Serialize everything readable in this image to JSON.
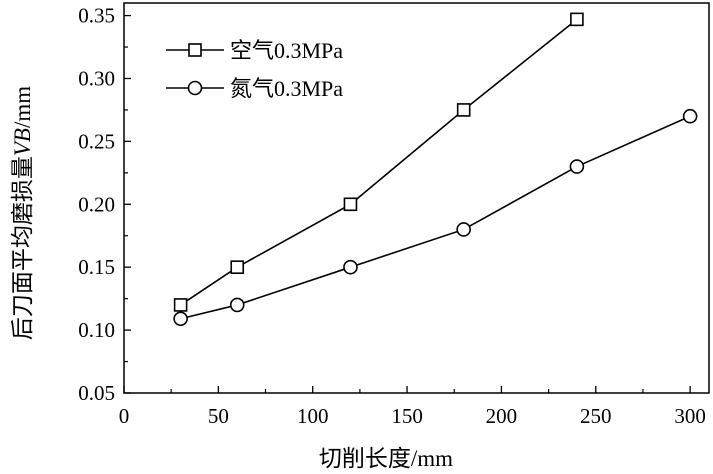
{
  "chart_data": {
    "type": "line",
    "x": [
      30,
      60,
      120,
      180,
      240,
      300
    ],
    "series": [
      {
        "name": "空气0.3MPa",
        "marker": "square",
        "x": [
          30,
          60,
          120,
          180,
          240
        ],
        "values": [
          0.12,
          0.15,
          0.2,
          0.275,
          0.347
        ]
      },
      {
        "name": "氮气0.3MPa",
        "marker": "circle",
        "x": [
          30,
          60,
          120,
          180,
          240,
          300
        ],
        "values": [
          0.109,
          0.12,
          0.15,
          0.18,
          0.23,
          0.27
        ]
      }
    ],
    "xlabel": "切削长度/mm",
    "ylabel_prefix": "后刀面平均磨损量",
    "ylabel_var": "VB",
    "ylabel_unit": "/mm",
    "xlim": [
      0,
      310
    ],
    "ylim": [
      0.05,
      0.36
    ],
    "xticks": [
      "0",
      "50",
      "100",
      "150",
      "200",
      "250",
      "300"
    ],
    "yticks": [
      "0.05",
      "0.10",
      "0.15",
      "0.20",
      "0.25",
      "0.30",
      "0.35"
    ],
    "grid": false,
    "legend_position": "top-left",
    "colors": {
      "line": "#000000",
      "background": "#ffffff"
    }
  }
}
